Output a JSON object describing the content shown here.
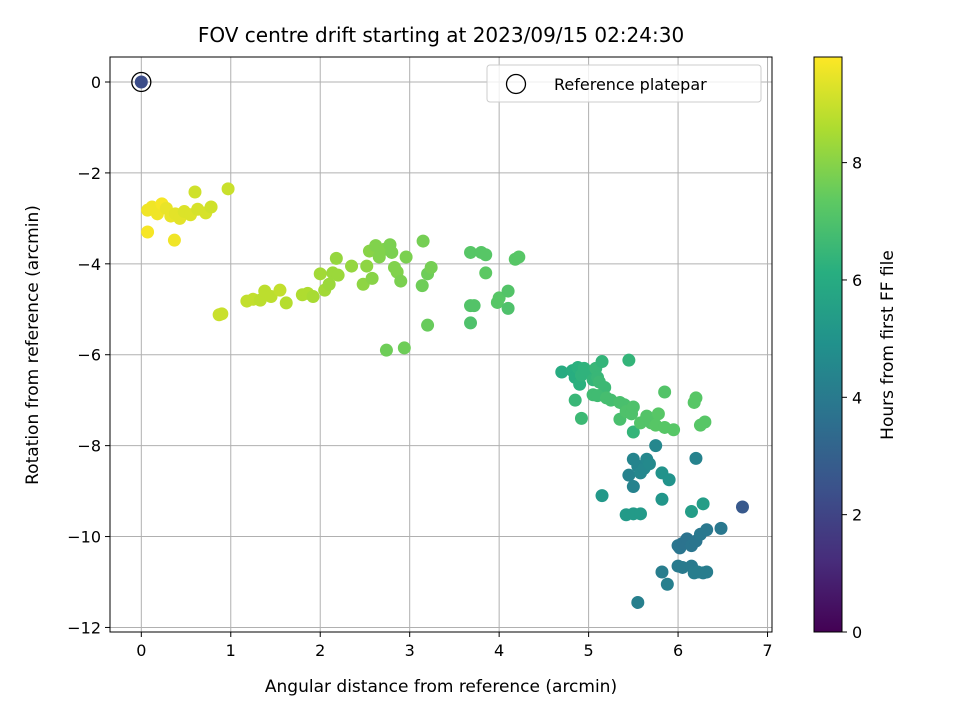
{
  "chart_data": {
    "type": "scatter",
    "title": "FOV centre drift starting at 2023/09/15 02:24:30",
    "xlabel": "Angular distance from reference (arcmin)",
    "ylabel": "Rotation from reference (arcmin)",
    "xlim": [
      -0.35,
      7.05
    ],
    "ylim": [
      -12.1,
      0.55
    ],
    "xticks": [
      0,
      1,
      2,
      3,
      4,
      5,
      6,
      7
    ],
    "yticks": [
      0,
      -2,
      -4,
      -6,
      -8,
      -10,
      -12
    ],
    "grid": true,
    "colormap": "viridis",
    "colorbar": {
      "label": "Hours from first FF file",
      "range": [
        0,
        9.8
      ],
      "ticks": [
        0,
        2,
        4,
        6,
        8
      ]
    },
    "legend": {
      "position": "top-right",
      "entries": [
        "Reference platepar"
      ]
    },
    "reference_point": {
      "x": 0,
      "y": 0,
      "c": 2.3
    },
    "series": [
      {
        "points": [
          {
            "x": 0.07,
            "y": -2.82,
            "c": 9.6
          },
          {
            "x": 0.12,
            "y": -2.75,
            "c": 9.6
          },
          {
            "x": 0.18,
            "y": -2.9,
            "c": 9.6
          },
          {
            "x": 0.23,
            "y": -2.68,
            "c": 9.7
          },
          {
            "x": 0.28,
            "y": -2.78,
            "c": 9.5
          },
          {
            "x": 0.33,
            "y": -2.95,
            "c": 9.5
          },
          {
            "x": 0.38,
            "y": -2.9,
            "c": 9.4
          },
          {
            "x": 0.43,
            "y": -3.0,
            "c": 9.4
          },
          {
            "x": 0.48,
            "y": -2.85,
            "c": 9.3
          },
          {
            "x": 0.55,
            "y": -2.92,
            "c": 9.3
          },
          {
            "x": 0.63,
            "y": -2.8,
            "c": 9.2
          },
          {
            "x": 0.72,
            "y": -2.88,
            "c": 9.2
          },
          {
            "x": 0.78,
            "y": -2.75,
            "c": 9.1
          },
          {
            "x": 0.97,
            "y": -2.35,
            "c": 9.0
          },
          {
            "x": 0.6,
            "y": -2.42,
            "c": 9.1
          },
          {
            "x": 0.07,
            "y": -3.3,
            "c": 9.7
          },
          {
            "x": 0.37,
            "y": -3.48,
            "c": 9.6
          },
          {
            "x": 0.87,
            "y": -5.12,
            "c": 9.0
          },
          {
            "x": 0.9,
            "y": -5.1,
            "c": 9.0
          },
          {
            "x": 1.18,
            "y": -4.82,
            "c": 8.9
          },
          {
            "x": 1.25,
            "y": -4.78,
            "c": 8.9
          },
          {
            "x": 1.33,
            "y": -4.8,
            "c": 8.8
          },
          {
            "x": 1.38,
            "y": -4.6,
            "c": 8.8
          },
          {
            "x": 1.45,
            "y": -4.72,
            "c": 8.8
          },
          {
            "x": 1.55,
            "y": -4.58,
            "c": 8.9
          },
          {
            "x": 1.62,
            "y": -4.86,
            "c": 8.7
          },
          {
            "x": 1.8,
            "y": -4.68,
            "c": 8.6
          },
          {
            "x": 1.86,
            "y": -4.65,
            "c": 8.6
          },
          {
            "x": 1.92,
            "y": -4.72,
            "c": 8.5
          },
          {
            "x": 2.0,
            "y": -4.22,
            "c": 8.4
          },
          {
            "x": 2.05,
            "y": -4.58,
            "c": 8.4
          },
          {
            "x": 2.1,
            "y": -4.45,
            "c": 8.3
          },
          {
            "x": 2.14,
            "y": -4.2,
            "c": 8.3
          },
          {
            "x": 2.18,
            "y": -3.88,
            "c": 8.2
          },
          {
            "x": 2.2,
            "y": -4.25,
            "c": 8.3
          },
          {
            "x": 2.35,
            "y": -4.05,
            "c": 8.2
          },
          {
            "x": 2.48,
            "y": -4.45,
            "c": 8.1
          },
          {
            "x": 2.52,
            "y": -4.05,
            "c": 8.1
          },
          {
            "x": 2.55,
            "y": -3.72,
            "c": 8.0
          },
          {
            "x": 2.58,
            "y": -4.32,
            "c": 8.0
          },
          {
            "x": 2.62,
            "y": -3.6,
            "c": 7.9
          },
          {
            "x": 2.66,
            "y": -3.85,
            "c": 7.9
          },
          {
            "x": 2.72,
            "y": -3.68,
            "c": 7.9
          },
          {
            "x": 2.78,
            "y": -3.58,
            "c": 7.8
          },
          {
            "x": 2.8,
            "y": -3.75,
            "c": 7.8
          },
          {
            "x": 2.83,
            "y": -4.08,
            "c": 7.9
          },
          {
            "x": 2.86,
            "y": -4.18,
            "c": 7.9
          },
          {
            "x": 2.9,
            "y": -4.38,
            "c": 7.8
          },
          {
            "x": 2.96,
            "y": -3.85,
            "c": 7.8
          },
          {
            "x": 2.74,
            "y": -5.9,
            "c": 7.6
          },
          {
            "x": 2.94,
            "y": -5.85,
            "c": 7.6
          },
          {
            "x": 3.15,
            "y": -3.5,
            "c": 7.7
          },
          {
            "x": 3.14,
            "y": -4.48,
            "c": 7.6
          },
          {
            "x": 3.2,
            "y": -4.22,
            "c": 7.6
          },
          {
            "x": 3.24,
            "y": -4.08,
            "c": 7.7
          },
          {
            "x": 3.2,
            "y": -5.35,
            "c": 7.5
          },
          {
            "x": 3.68,
            "y": -3.75,
            "c": 7.2
          },
          {
            "x": 3.68,
            "y": -4.92,
            "c": 7.1
          },
          {
            "x": 3.72,
            "y": -4.92,
            "c": 7.1
          },
          {
            "x": 3.68,
            "y": -5.3,
            "c": 7.0
          },
          {
            "x": 3.8,
            "y": -3.75,
            "c": 7.2
          },
          {
            "x": 3.85,
            "y": -3.8,
            "c": 7.2
          },
          {
            "x": 3.85,
            "y": -4.2,
            "c": 7.3
          },
          {
            "x": 3.98,
            "y": -4.85,
            "c": 7.2
          },
          {
            "x": 4.0,
            "y": -4.75,
            "c": 7.2
          },
          {
            "x": 4.1,
            "y": -4.6,
            "c": 7.1
          },
          {
            "x": 4.1,
            "y": -4.98,
            "c": 7.0
          },
          {
            "x": 4.18,
            "y": -3.9,
            "c": 7.2
          },
          {
            "x": 4.22,
            "y": -3.85,
            "c": 7.2
          },
          {
            "x": 4.7,
            "y": -6.38,
            "c": 6.0
          },
          {
            "x": 4.82,
            "y": -6.35,
            "c": 6.1
          },
          {
            "x": 4.85,
            "y": -6.5,
            "c": 6.1
          },
          {
            "x": 4.88,
            "y": -6.28,
            "c": 6.2
          },
          {
            "x": 4.9,
            "y": -6.65,
            "c": 6.2
          },
          {
            "x": 4.92,
            "y": -6.45,
            "c": 6.3
          },
          {
            "x": 4.95,
            "y": -6.3,
            "c": 6.3
          },
          {
            "x": 5.02,
            "y": -6.38,
            "c": 6.3
          },
          {
            "x": 5.05,
            "y": -6.55,
            "c": 6.4
          },
          {
            "x": 5.08,
            "y": -6.3,
            "c": 6.5
          },
          {
            "x": 5.1,
            "y": -6.5,
            "c": 6.5
          },
          {
            "x": 5.15,
            "y": -6.15,
            "c": 6.4
          },
          {
            "x": 5.12,
            "y": -6.6,
            "c": 6.6
          },
          {
            "x": 5.18,
            "y": -6.72,
            "c": 6.6
          },
          {
            "x": 4.85,
            "y": -7.0,
            "c": 6.5
          },
          {
            "x": 4.92,
            "y": -7.4,
            "c": 6.6
          },
          {
            "x": 5.05,
            "y": -6.88,
            "c": 6.7
          },
          {
            "x": 5.1,
            "y": -6.9,
            "c": 6.7
          },
          {
            "x": 5.2,
            "y": -6.95,
            "c": 6.8
          },
          {
            "x": 5.25,
            "y": -7.0,
            "c": 6.8
          },
          {
            "x": 5.35,
            "y": -7.05,
            "c": 6.9
          },
          {
            "x": 5.35,
            "y": -7.42,
            "c": 6.9
          },
          {
            "x": 5.4,
            "y": -7.1,
            "c": 6.9
          },
          {
            "x": 5.42,
            "y": -7.25,
            "c": 7.0
          },
          {
            "x": 5.48,
            "y": -7.3,
            "c": 7.0
          },
          {
            "x": 5.5,
            "y": -7.15,
            "c": 7.0
          },
          {
            "x": 5.45,
            "y": -6.12,
            "c": 6.4
          },
          {
            "x": 5.5,
            "y": -7.7,
            "c": 6.4
          },
          {
            "x": 5.58,
            "y": -7.5,
            "c": 7.1
          },
          {
            "x": 5.65,
            "y": -7.35,
            "c": 7.1
          },
          {
            "x": 5.7,
            "y": -7.5,
            "c": 7.1
          },
          {
            "x": 5.75,
            "y": -7.55,
            "c": 7.2
          },
          {
            "x": 5.78,
            "y": -7.3,
            "c": 7.2
          },
          {
            "x": 5.85,
            "y": -7.6,
            "c": 7.2
          },
          {
            "x": 5.95,
            "y": -7.65,
            "c": 7.2
          },
          {
            "x": 5.85,
            "y": -6.82,
            "c": 7.1
          },
          {
            "x": 6.18,
            "y": -7.05,
            "c": 7.2
          },
          {
            "x": 6.2,
            "y": -6.95,
            "c": 7.2
          },
          {
            "x": 6.25,
            "y": -7.55,
            "c": 7.2
          },
          {
            "x": 6.3,
            "y": -7.48,
            "c": 7.2
          },
          {
            "x": 5.45,
            "y": -8.65,
            "c": 4.3
          },
          {
            "x": 5.5,
            "y": -8.9,
            "c": 4.3
          },
          {
            "x": 5.5,
            "y": -8.3,
            "c": 4.4
          },
          {
            "x": 5.55,
            "y": -8.45,
            "c": 4.4
          },
          {
            "x": 5.58,
            "y": -8.6,
            "c": 4.5
          },
          {
            "x": 5.62,
            "y": -8.5,
            "c": 4.5
          },
          {
            "x": 5.65,
            "y": -8.3,
            "c": 4.5
          },
          {
            "x": 5.68,
            "y": -8.4,
            "c": 4.6
          },
          {
            "x": 5.75,
            "y": -8.0,
            "c": 4.5
          },
          {
            "x": 5.82,
            "y": -8.6,
            "c": 5.0
          },
          {
            "x": 5.9,
            "y": -8.75,
            "c": 5.0
          },
          {
            "x": 5.82,
            "y": -9.18,
            "c": 5.1
          },
          {
            "x": 6.2,
            "y": -8.28,
            "c": 4.3
          },
          {
            "x": 5.15,
            "y": -9.1,
            "c": 5.2
          },
          {
            "x": 5.42,
            "y": -9.52,
            "c": 5.3
          },
          {
            "x": 5.5,
            "y": -9.5,
            "c": 5.3
          },
          {
            "x": 5.58,
            "y": -9.5,
            "c": 5.3
          },
          {
            "x": 6.15,
            "y": -9.45,
            "c": 5.4
          },
          {
            "x": 6.28,
            "y": -9.28,
            "c": 5.4
          },
          {
            "x": 6.0,
            "y": -10.2,
            "c": 3.8
          },
          {
            "x": 6.02,
            "y": -10.25,
            "c": 3.8
          },
          {
            "x": 6.05,
            "y": -10.15,
            "c": 3.7
          },
          {
            "x": 6.1,
            "y": -10.05,
            "c": 3.7
          },
          {
            "x": 6.15,
            "y": -10.2,
            "c": 3.8
          },
          {
            "x": 6.2,
            "y": -10.1,
            "c": 3.8
          },
          {
            "x": 6.25,
            "y": -9.95,
            "c": 3.9
          },
          {
            "x": 6.32,
            "y": -9.85,
            "c": 3.9
          },
          {
            "x": 6.48,
            "y": -9.82,
            "c": 3.9
          },
          {
            "x": 6.0,
            "y": -10.65,
            "c": 4.0
          },
          {
            "x": 6.05,
            "y": -10.68,
            "c": 4.0
          },
          {
            "x": 6.15,
            "y": -10.65,
            "c": 4.0
          },
          {
            "x": 6.18,
            "y": -10.8,
            "c": 4.1
          },
          {
            "x": 6.22,
            "y": -10.78,
            "c": 4.1
          },
          {
            "x": 6.28,
            "y": -10.8,
            "c": 4.1
          },
          {
            "x": 6.32,
            "y": -10.78,
            "c": 4.1
          },
          {
            "x": 5.82,
            "y": -10.78,
            "c": 4.1
          },
          {
            "x": 5.88,
            "y": -11.05,
            "c": 4.2
          },
          {
            "x": 5.55,
            "y": -11.45,
            "c": 4.2
          },
          {
            "x": 6.72,
            "y": -9.35,
            "c": 2.7
          }
        ]
      }
    ]
  }
}
